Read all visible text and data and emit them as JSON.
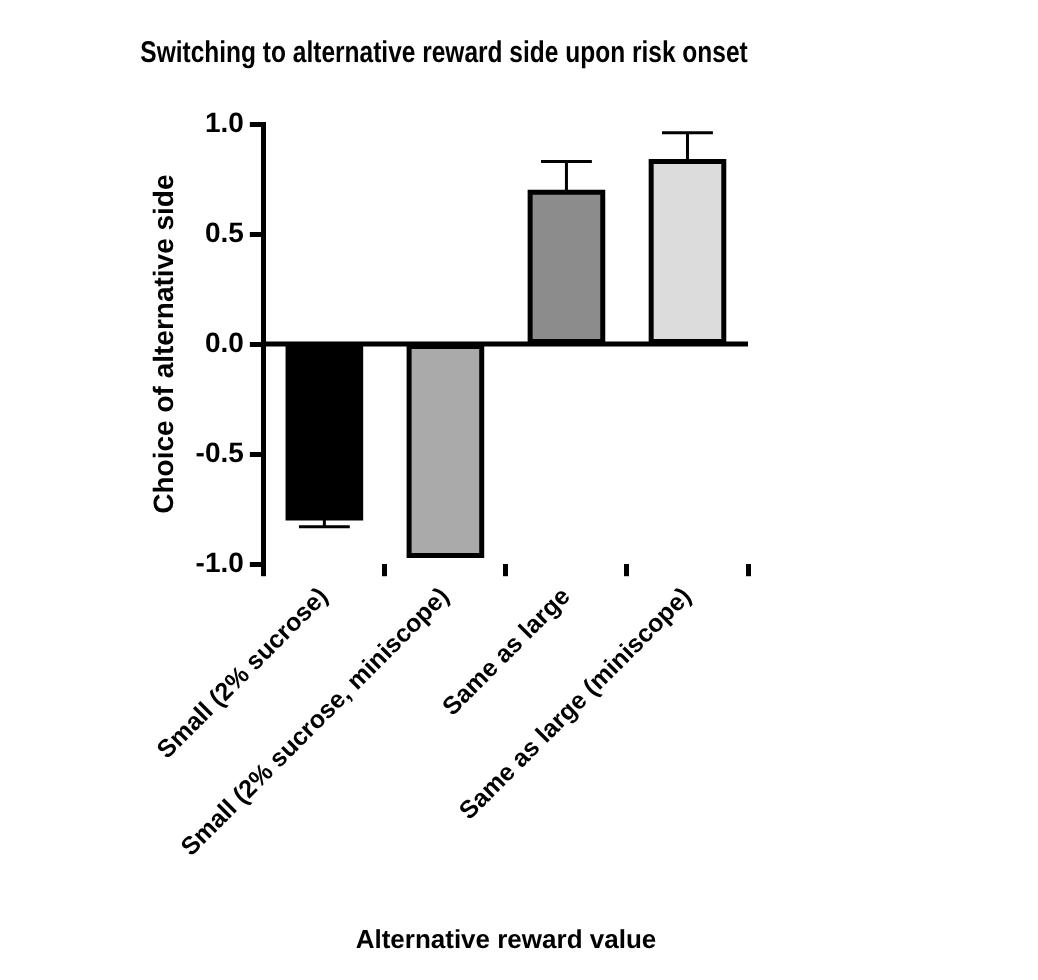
{
  "chart_data": {
    "type": "bar",
    "title": "Switching to alternative reward side upon risk onset",
    "xlabel": "Alternative reward value",
    "ylabel": "Choice of alternative side",
    "categories": [
      "Small (2% sucrose)",
      "Small (2% sucrose, miniscope)",
      "Same as large",
      "Same as large (miniscope)"
    ],
    "values": [
      -0.79,
      -0.96,
      0.69,
      0.83
    ],
    "colors": [
      "#000000",
      "#aaaaaa",
      "#8c8c8c",
      "#dcdcdc"
    ],
    "errors": [
      [
        -0.83,
        -0.79
      ],
      null,
      [
        0.69,
        0.83
      ],
      [
        0.83,
        0.96
      ]
    ],
    "ylim": [
      -1.0,
      1.0
    ],
    "yticks": [
      {
        "value": -1,
        "label": "-1.0"
      },
      {
        "value": -0.5,
        "label": "-0.5"
      },
      {
        "value": 0,
        "label": "0.0"
      },
      {
        "value": 0.5,
        "label": "0.5"
      },
      {
        "value": 1,
        "label": "1.0"
      }
    ],
    "ref_lines": [
      {
        "axis": "y",
        "value": 0,
        "color": "#000000"
      }
    ],
    "grid": false,
    "legend": false
  }
}
